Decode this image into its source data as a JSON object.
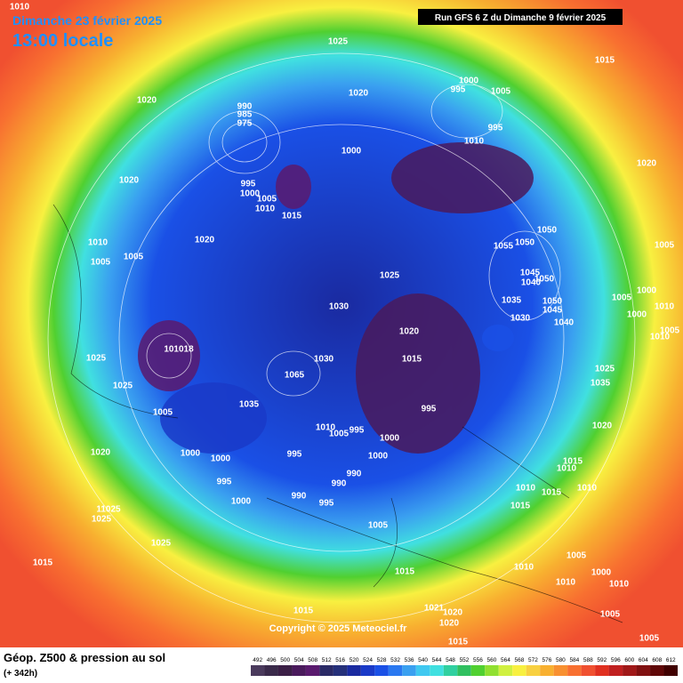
{
  "header": {
    "title": "Dimanche 23 février 2025",
    "subtitle": "13:00 locale",
    "run": "Run GFS 6 Z du Dimanche 9 février 2025"
  },
  "copyright": "Copyright © 2025 Meteociel.fr",
  "legend": {
    "title": "Géop. Z500 & pression au sol",
    "subtitle": "(+ 342h)",
    "ticks": [
      492,
      496,
      500,
      504,
      508,
      512,
      516,
      520,
      524,
      528,
      532,
      536,
      540,
      544,
      548,
      552,
      556,
      560,
      564,
      568,
      572,
      576,
      580,
      584,
      588,
      592,
      596,
      600,
      604,
      608,
      612
    ],
    "colors": [
      "#4a3a5c",
      "#3a2a4a",
      "#3b1f46",
      "#4a1a5c",
      "#5a1a6e",
      "#2a2a66",
      "#25307a",
      "#1a2aa0",
      "#1a3ac8",
      "#1a50e6",
      "#2a78f0",
      "#3aa0f0",
      "#40c8f0",
      "#40e0e0",
      "#30d0a0",
      "#30c060",
      "#50d030",
      "#90e030",
      "#d0f040",
      "#f8f040",
      "#f8d040",
      "#f8b030",
      "#f89030",
      "#f87030",
      "#f05030",
      "#e03020",
      "#c02020",
      "#a01818",
      "#801010",
      "#600808",
      "#400000"
    ]
  },
  "isobar_labels": [
    1010,
    1025,
    1015,
    1020,
    1020,
    1000,
    995,
    1005,
    990,
    985,
    975,
    995,
    1010,
    1020,
    1000,
    1020,
    995,
    1000,
    1005,
    1010,
    1015,
    1010,
    1005,
    1005,
    1020,
    1055,
    1050,
    1050,
    1005,
    1025,
    1045,
    1040,
    1050,
    1000,
    1005,
    1035,
    1030,
    1050,
    1045,
    1040,
    1000,
    1010,
    1030,
    1020,
    1010,
    1005,
    1015,
    1025,
    1030,
    1065,
    1025,
    1035,
    1025,
    1035,
    995,
    1005,
    1020,
    1010,
    1005,
    995,
    1000,
    1020,
    1000,
    1000,
    995,
    1000,
    1015,
    1010,
    990,
    995,
    990,
    1010,
    1015,
    1010,
    990,
    995,
    1000,
    1015,
    11025,
    1025,
    1005,
    1025,
    1005,
    1015,
    1010,
    1010,
    1000,
    1015,
    1010,
    1015,
    1021,
    1020,
    1005,
    1020,
    1015,
    1005,
    101018
  ]
}
